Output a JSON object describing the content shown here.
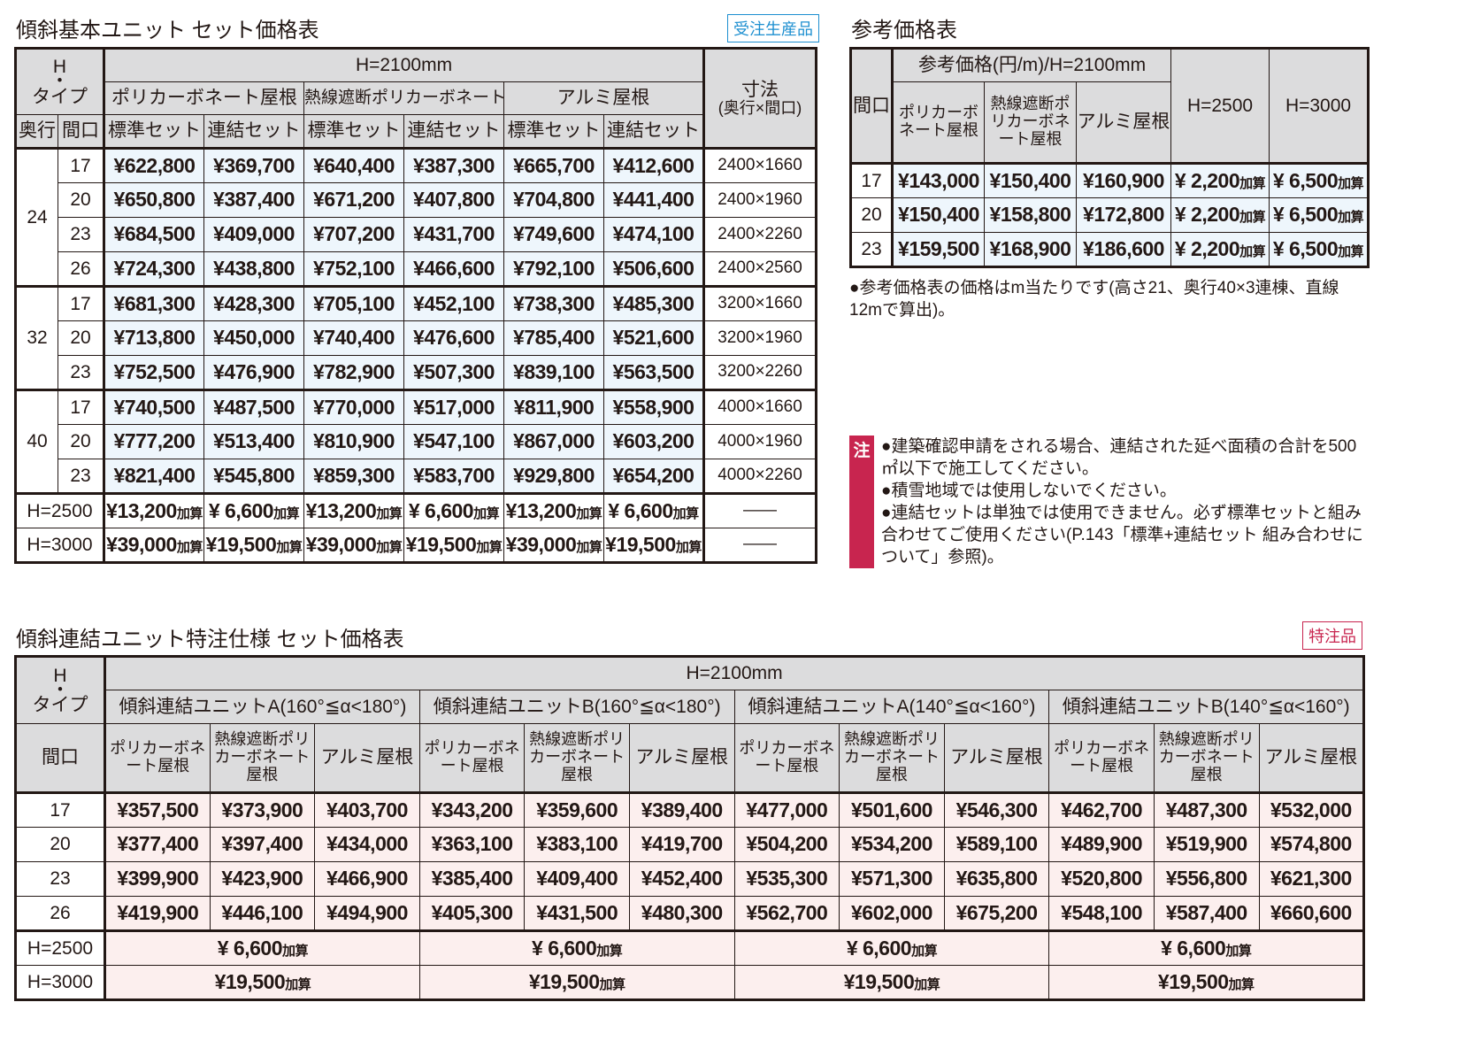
{
  "table1": {
    "title": "傾斜基本ユニット セット価格表",
    "badge": "受注生産品",
    "hdr_H": "H",
    "hdr_dot": "・",
    "hdr_type": "タイプ",
    "hdr_h2100": "H=2100mm",
    "hdr_roofs": [
      "ポリカーボネート屋根",
      "熱線遮断ポリカーボネート屋根",
      "アルミ屋根"
    ],
    "hdr_depth": "奥行",
    "hdr_width": "間口",
    "hdr_sets": [
      "標準セット",
      "連結セット",
      "標準セット",
      "連結セット",
      "標準セット",
      "連結セット"
    ],
    "hdr_dim": "寸法",
    "hdr_dim_sub": "(奥行×間口)",
    "groups": [
      {
        "depth": "24",
        "rows": [
          {
            "w": "17",
            "p": [
              "¥622,800",
              "¥369,700",
              "¥640,400",
              "¥387,300",
              "¥665,700",
              "¥412,600"
            ],
            "dim": "2400×1660"
          },
          {
            "w": "20",
            "p": [
              "¥650,800",
              "¥387,400",
              "¥671,200",
              "¥407,800",
              "¥704,800",
              "¥441,400"
            ],
            "dim": "2400×1960"
          },
          {
            "w": "23",
            "p": [
              "¥684,500",
              "¥409,000",
              "¥707,200",
              "¥431,700",
              "¥749,600",
              "¥474,100"
            ],
            "dim": "2400×2260"
          },
          {
            "w": "26",
            "p": [
              "¥724,300",
              "¥438,800",
              "¥752,100",
              "¥466,600",
              "¥792,100",
              "¥506,600"
            ],
            "dim": "2400×2560"
          }
        ]
      },
      {
        "depth": "32",
        "rows": [
          {
            "w": "17",
            "p": [
              "¥681,300",
              "¥428,300",
              "¥705,100",
              "¥452,100",
              "¥738,300",
              "¥485,300"
            ],
            "dim": "3200×1660"
          },
          {
            "w": "20",
            "p": [
              "¥713,800",
              "¥450,000",
              "¥740,400",
              "¥476,600",
              "¥785,400",
              "¥521,600"
            ],
            "dim": "3200×1960"
          },
          {
            "w": "23",
            "p": [
              "¥752,500",
              "¥476,900",
              "¥782,900",
              "¥507,300",
              "¥839,100",
              "¥563,500"
            ],
            "dim": "3200×2260"
          }
        ]
      },
      {
        "depth": "40",
        "rows": [
          {
            "w": "17",
            "p": [
              "¥740,500",
              "¥487,500",
              "¥770,000",
              "¥517,000",
              "¥811,900",
              "¥558,900"
            ],
            "dim": "4000×1660"
          },
          {
            "w": "20",
            "p": [
              "¥777,200",
              "¥513,400",
              "¥810,900",
              "¥547,100",
              "¥867,000",
              "¥603,200"
            ],
            "dim": "4000×1960"
          },
          {
            "w": "23",
            "p": [
              "¥821,400",
              "¥545,800",
              "¥859,300",
              "¥583,700",
              "¥929,800",
              "¥654,200"
            ],
            "dim": "4000×2260"
          }
        ]
      }
    ],
    "extra": [
      {
        "label": "H=2500",
        "p": [
          "¥13,200",
          "¥ 6,600",
          "¥13,200",
          "¥ 6,600",
          "¥13,200",
          "¥ 6,600"
        ],
        "dim": "——"
      },
      {
        "label": "H=3000",
        "p": [
          "¥39,000",
          "¥19,500",
          "¥39,000",
          "¥19,500",
          "¥39,000",
          "¥19,500"
        ],
        "dim": "——"
      }
    ],
    "kasan": "加算"
  },
  "table2": {
    "title": "参考価格表",
    "hdr_width": "間口",
    "hdr_ref": "参考価格(円/m)/H=2100mm",
    "hdr_roofs": [
      "ポリカーボネート屋根",
      "熱線遮断ポリカーボネート屋根",
      "アルミ屋根"
    ],
    "hdr_h2500": "H=2500",
    "hdr_h3000": "H=3000",
    "rows": [
      {
        "w": "17",
        "p": [
          "¥143,000",
          "¥150,400",
          "¥160,900"
        ],
        "h2500": "¥ 2,200",
        "h3000": "¥ 6,500"
      },
      {
        "w": "20",
        "p": [
          "¥150,400",
          "¥158,800",
          "¥172,800"
        ],
        "h2500": "¥ 2,200",
        "h3000": "¥ 6,500"
      },
      {
        "w": "23",
        "p": [
          "¥159,500",
          "¥168,900",
          "¥186,600"
        ],
        "h2500": "¥ 2,200",
        "h3000": "¥ 6,500"
      }
    ],
    "kasan": "加算",
    "note": "●参考価格表の価格はm当たりです(高さ21、奥行40×3連棟、直線12mで算出)。"
  },
  "notes": {
    "marker": "注",
    "items": [
      "●建築確認申請をされる場合、連結された延べ面積の合計を500㎡以下で施工してください。",
      "●積雪地域では使用しないでください。",
      "●連結セットは単独では使用できません。必ず標準セットと組み合わせてご使用ください(P.143「標準+連結セット 組み合わせについて」参照)。"
    ]
  },
  "table3": {
    "title": "傾斜連結ユニット特注仕様 セット価格表",
    "badge": "特注品",
    "hdr_H": "H",
    "hdr_dot": "・",
    "hdr_type": "タイプ",
    "hdr_h2100": "H=2100mm",
    "hdr_units": [
      "傾斜連結ユニットA(160°≦α<180°)",
      "傾斜連結ユニットB(160°≦α<180°)",
      "傾斜連結ユニットA(140°≦α<160°)",
      "傾斜連結ユニットB(140°≦α<160°)"
    ],
    "hdr_width": "間口",
    "hdr_roofs": [
      "ポリカーボネート屋根",
      "熱線遮断ポリカーボネート屋根",
      "アルミ屋根"
    ],
    "rows": [
      {
        "w": "17",
        "p": [
          "¥357,500",
          "¥373,900",
          "¥403,700",
          "¥343,200",
          "¥359,600",
          "¥389,400",
          "¥477,000",
          "¥501,600",
          "¥546,300",
          "¥462,700",
          "¥487,300",
          "¥532,000"
        ]
      },
      {
        "w": "20",
        "p": [
          "¥377,400",
          "¥397,400",
          "¥434,000",
          "¥363,100",
          "¥383,100",
          "¥419,700",
          "¥504,200",
          "¥534,200",
          "¥589,100",
          "¥489,900",
          "¥519,900",
          "¥574,800"
        ]
      },
      {
        "w": "23",
        "p": [
          "¥399,900",
          "¥423,900",
          "¥466,900",
          "¥385,400",
          "¥409,400",
          "¥452,400",
          "¥535,300",
          "¥571,300",
          "¥635,800",
          "¥520,800",
          "¥556,800",
          "¥621,300"
        ]
      },
      {
        "w": "26",
        "p": [
          "¥419,900",
          "¥446,100",
          "¥494,900",
          "¥405,300",
          "¥431,500",
          "¥480,300",
          "¥562,700",
          "¥602,000",
          "¥675,200",
          "¥548,100",
          "¥587,400",
          "¥660,600"
        ]
      }
    ],
    "extra": [
      {
        "label": "H=2500",
        "p": [
          "¥ 6,600",
          "¥ 6,600",
          "¥ 6,600",
          "¥ 6,600"
        ]
      },
      {
        "label": "H=3000",
        "p": [
          "¥19,500",
          "¥19,500",
          "¥19,500",
          "¥19,500"
        ]
      }
    ],
    "kasan": "加算"
  }
}
